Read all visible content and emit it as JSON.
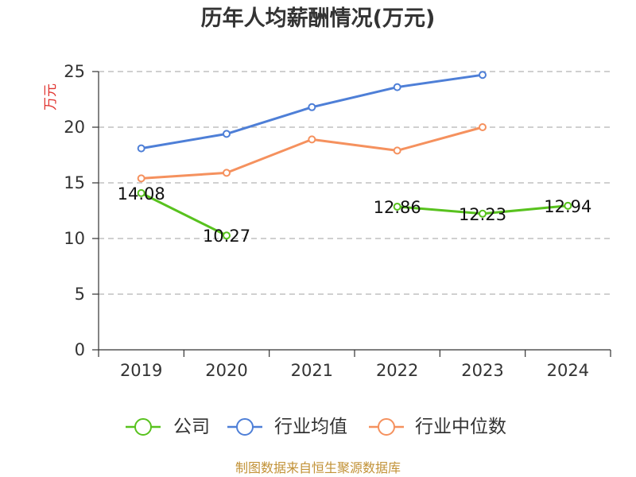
{
  "footer": "制图数据来自恒生聚源数据库",
  "colors": {
    "company": "#58c21e",
    "industry_mean": "#4e7fd7",
    "industry_median": "#f5915e",
    "ylabel": "#e0332f",
    "footer": "#c29237"
  },
  "chart_data": {
    "type": "line",
    "title": "历年人均薪酬情况(万元)",
    "xlabel": "",
    "ylabel": "万元",
    "categories": [
      "2019",
      "2020",
      "2021",
      "2022",
      "2023",
      "2024"
    ],
    "ylim": [
      0,
      25
    ],
    "yticks": [
      0,
      5,
      10,
      15,
      20,
      25
    ],
    "grid": true,
    "legend_position": "bottom",
    "series": [
      {
        "name": "公司",
        "color": "#58c21e",
        "show_data_labels": true,
        "values": [
          14.08,
          10.27,
          null,
          12.86,
          12.23,
          12.94
        ]
      },
      {
        "name": "行业均值",
        "color": "#4e7fd7",
        "show_data_labels": false,
        "values": [
          18.1,
          19.4,
          21.8,
          23.6,
          24.7,
          null
        ]
      },
      {
        "name": "行业中位数",
        "color": "#f5915e",
        "show_data_labels": false,
        "values": [
          15.4,
          15.9,
          18.9,
          17.9,
          20,
          null
        ]
      }
    ]
  }
}
